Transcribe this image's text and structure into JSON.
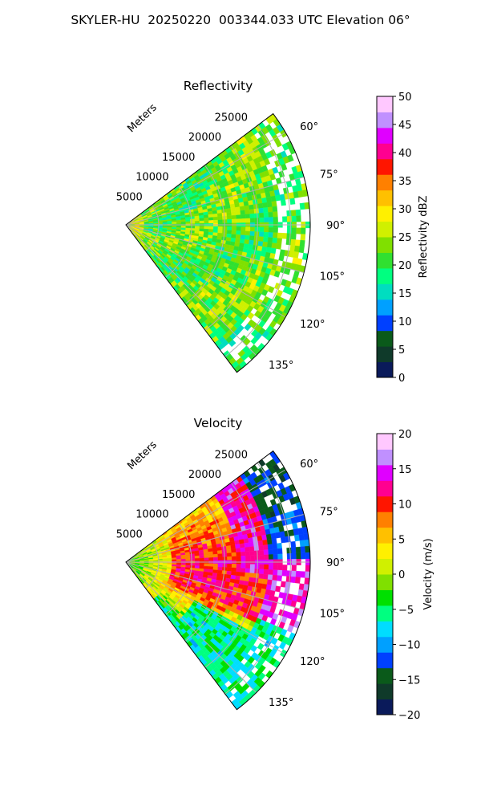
{
  "figure": {
    "suptitle": "SKYLER-HU  20250220  003344.033 UTC Elevation 06°"
  },
  "chart_data": [
    {
      "type": "heatmap",
      "projection": "polar-sector",
      "title": "Reflectivity",
      "range_label": "Meters",
      "range_ticks": [
        5000,
        10000,
        15000,
        20000,
        25000
      ],
      "range_limits": [
        0,
        28000
      ],
      "azimuth_ticks": [
        "60°",
        "75°",
        "90°",
        "105°",
        "120°",
        "135°"
      ],
      "azimuth_limits_deg": [
        53,
        143
      ],
      "grid": true,
      "colorbar": {
        "label": "Reflectivity dBZ",
        "range": [
          0,
          50
        ],
        "ticks": [
          "0",
          "5",
          "10",
          "15",
          "20",
          "25",
          "30",
          "35",
          "40",
          "45",
          "50"
        ],
        "colors": [
          "#0a1a5a",
          "#0f3a2a",
          "#0a5a1a",
          "#0040ff",
          "#00a0ff",
          "#00ddc0",
          "#00ff80",
          "#30e030",
          "#80e000",
          "#d0f000",
          "#fff000",
          "#ffc000",
          "#ff8000",
          "#ff1500",
          "#ff0090",
          "#e000ff",
          "#c090ff",
          "#ffc8ff"
        ]
      },
      "field_summary": {
        "dominant_value_dbz": 22,
        "near_field_value_dbz": 27,
        "range_dbz": [
          15,
          30
        ],
        "dominant_colors": [
          "#80e000",
          "#d0f000",
          "#fff000"
        ]
      }
    },
    {
      "type": "heatmap",
      "projection": "polar-sector",
      "title": "Velocity",
      "range_label": "Meters",
      "range_ticks": [
        5000,
        10000,
        15000,
        20000,
        25000
      ],
      "range_limits": [
        0,
        28000
      ],
      "azimuth_ticks": [
        "60°",
        "75°",
        "90°",
        "105°",
        "120°",
        "135°"
      ],
      "azimuth_limits_deg": [
        53,
        143
      ],
      "grid": true,
      "colorbar": {
        "label": "Velocity (m/s)",
        "range": [
          -20,
          20
        ],
        "ticks": [
          "−20",
          "−15",
          "−10",
          "−5",
          "0",
          "5",
          "10",
          "15",
          "20"
        ],
        "colors": [
          "#0a1a5a",
          "#0f3a2a",
          "#0a5a1a",
          "#0040ff",
          "#00a0ff",
          "#00ddff",
          "#00ff80",
          "#00e000",
          "#80e000",
          "#d0f000",
          "#fff000",
          "#ffc000",
          "#ff8000",
          "#ff1500",
          "#ff0090",
          "#e000ff",
          "#c090ff",
          "#ffc8ff"
        ]
      },
      "field_summary": {
        "near_field_value_ms": -3,
        "mid_range_peak_ms": 10,
        "south_far_field_ms": -7,
        "north_far_field_ms": -12,
        "range_ms": [
          -12,
          16
        ]
      }
    }
  ]
}
